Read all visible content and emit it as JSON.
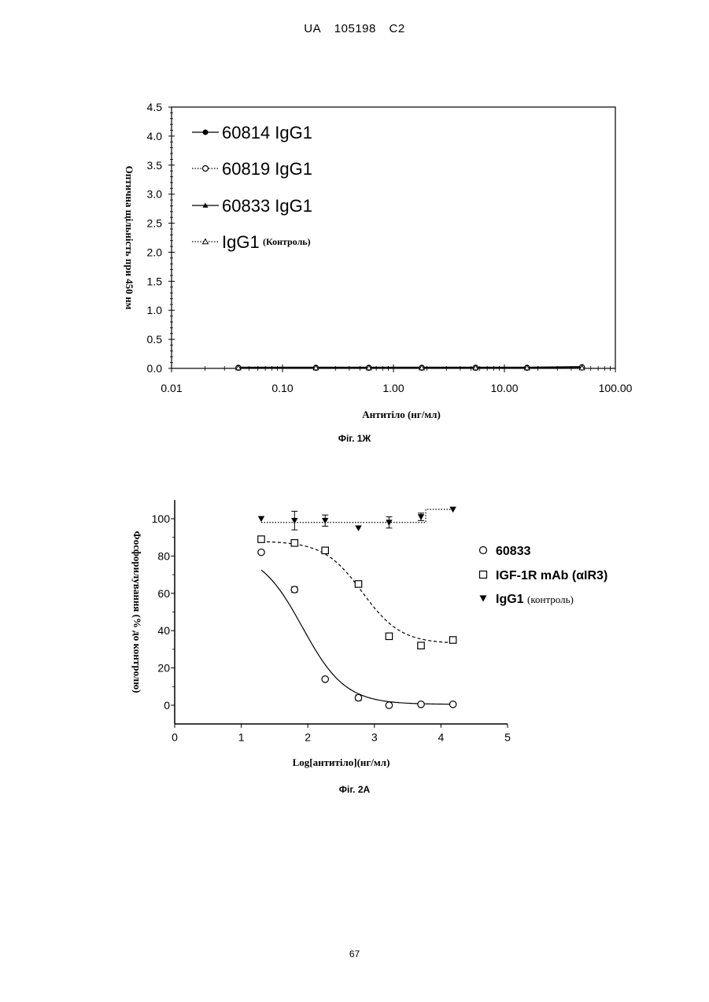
{
  "header": {
    "code": "UA",
    "number": "105198",
    "kind": "C2"
  },
  "page_number": "67",
  "chart_data": [
    {
      "type": "scatter",
      "caption": "Фіг. 1Ж",
      "xlabel": "Антитіло (нг/мл)",
      "ylabel": "Оптична щільність при 450 нм",
      "xscale": "log",
      "xlim": [
        0.01,
        100
      ],
      "ylim": [
        0,
        4.5
      ],
      "x_tick_labels": [
        "0.01",
        "0.10",
        "1.00",
        "10.00",
        "100.00"
      ],
      "y_tick_labels": [
        "0.0",
        "0.5",
        "1.0",
        "1.5",
        "2.0",
        "2.5",
        "3.0",
        "3.5",
        "4.0",
        "4.5"
      ],
      "legend_position": "top-left",
      "series": [
        {
          "name": "60814 IgG1",
          "marker": "filled-circle",
          "line": "solid",
          "x": [
            0.04,
            0.2,
            0.6,
            1.8,
            5.5,
            16,
            50
          ],
          "y": [
            0.02,
            0.02,
            0.02,
            0.02,
            0.02,
            0.02,
            0.03
          ]
        },
        {
          "name": "60819 IgG1",
          "marker": "open-circle",
          "line": "dotted",
          "x": [
            0.04,
            0.2,
            0.6,
            1.8,
            5.5,
            16,
            50
          ],
          "y": [
            0.01,
            0.01,
            0.01,
            0.01,
            0.01,
            0.01,
            0.02
          ]
        },
        {
          "name": "60833 IgG1",
          "marker": "filled-triangle",
          "line": "solid",
          "x": [
            0.04,
            0.2,
            0.6,
            1.8,
            5.5,
            16,
            50
          ],
          "y": [
            0.01,
            0.01,
            0.01,
            0.01,
            0.01,
            0.01,
            0.02
          ]
        },
        {
          "name": "IgG1",
          "name_suffix": "(Контроль)",
          "marker": "open-triangle",
          "line": "dotted",
          "x": [
            0.04,
            0.2,
            0.6,
            1.8,
            5.5,
            16,
            50
          ],
          "y": [
            0.01,
            0.01,
            0.01,
            0.01,
            0.01,
            0.01,
            0.01
          ]
        }
      ]
    },
    {
      "type": "scatter",
      "caption": "Фіг. 2А",
      "xlabel": "Log[антитіло](нг/мл)",
      "ylabel": "Фосфорилування (% до контролю)",
      "xlim": [
        0,
        5
      ],
      "ylim": [
        -10,
        110
      ],
      "x_ticks": [
        0,
        1,
        2,
        3,
        4,
        5
      ],
      "y_ticks": [
        0,
        20,
        40,
        60,
        80,
        100
      ],
      "legend_position": "right",
      "series": [
        {
          "name": "60833",
          "marker": "open-circle",
          "line": "solid",
          "x": [
            1.3,
            1.8,
            2.26,
            2.76,
            3.22,
            3.7,
            4.18
          ],
          "y": [
            82,
            62,
            14,
            4,
            0,
            0.5,
            0.5
          ],
          "err": [
            0,
            1.5,
            0,
            1.5,
            0,
            0,
            0
          ],
          "fit": {
            "top": 83,
            "bottom": 0.5,
            "logEC50": 1.92,
            "hill": 1.35
          }
        },
        {
          "name": "IGF-1R mAb (αIR3)",
          "marker": "open-square",
          "line": "dashed",
          "x": [
            1.3,
            1.8,
            2.26,
            2.76,
            3.22,
            3.7,
            4.18
          ],
          "y": [
            89,
            87,
            83,
            65,
            37,
            32,
            35
          ],
          "err": [
            0,
            0,
            1.5,
            0,
            0,
            0,
            0
          ],
          "fit": {
            "top": 88,
            "bottom": 33,
            "logEC50": 2.82,
            "hill": 1.5
          }
        },
        {
          "name": "IgG1",
          "name_suffix": "(контроль)",
          "marker": "filled-down-triangle",
          "line": "dotted",
          "x": [
            1.3,
            1.8,
            2.26,
            2.76,
            3.22,
            3.7,
            4.18
          ],
          "y": [
            100,
            99,
            99,
            95,
            98,
            101,
            105
          ],
          "err": [
            0,
            5,
            3,
            0,
            3,
            2,
            0
          ],
          "fit_y": [
            98,
            98,
            98,
            98,
            98,
            98,
            105
          ]
        }
      ]
    }
  ]
}
